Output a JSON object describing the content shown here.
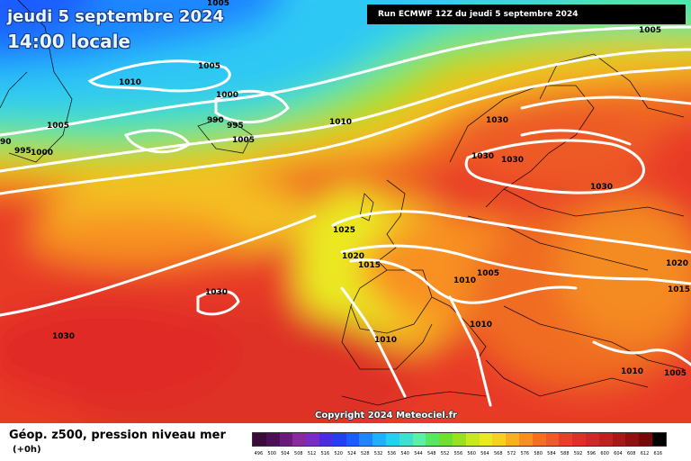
{
  "header": {
    "date_line": "jeudi 5 septembre 2024",
    "time_line": "14:00 locale",
    "run_info": "Run ECMWF 12Z du jeudi 5 septembre 2024"
  },
  "map": {
    "copyright": "Copyright 2024 Meteociel.fr",
    "isobar_labels": [
      "1005",
      "1005",
      "1010",
      "1005",
      "1000",
      "990",
      "995",
      "1010",
      "1005",
      "995",
      "1000",
      "90",
      "1005",
      "1030",
      "1030",
      "1030",
      "1030",
      "1025",
      "1020",
      "1015",
      "1005",
      "1010",
      "1010",
      "1010",
      "1030",
      "1030",
      "1020",
      "1015",
      "1010",
      "1005"
    ]
  },
  "legend": {
    "title": "Géop. z500, pression niveau mer",
    "lead": "(+0h)",
    "ticks": [
      "496",
      "500",
      "504",
      "508",
      "512",
      "516",
      "520",
      "524",
      "528",
      "532",
      "536",
      "540",
      "544",
      "548",
      "552",
      "556",
      "560",
      "564",
      "568",
      "572",
      "576",
      "580",
      "584",
      "588",
      "592",
      "596",
      "600",
      "604",
      "608",
      "612",
      "616"
    ],
    "colors": [
      "#3a0a3a",
      "#4b0f55",
      "#6a1a7a",
      "#8a2aa0",
      "#7a2cc8",
      "#4a2de0",
      "#2340f0",
      "#1a5cff",
      "#1f86ff",
      "#1fb0ff",
      "#22d0f0",
      "#3ee0d0",
      "#5af0a8",
      "#55e860",
      "#6ee030",
      "#9ae020",
      "#c8e820",
      "#eaea20",
      "#f8d020",
      "#f8b020",
      "#f89020",
      "#f47020",
      "#ee5a28",
      "#e84028",
      "#de3028",
      "#d02828",
      "#c02020",
      "#a81818",
      "#901010",
      "#780808",
      "#000000"
    ]
  }
}
